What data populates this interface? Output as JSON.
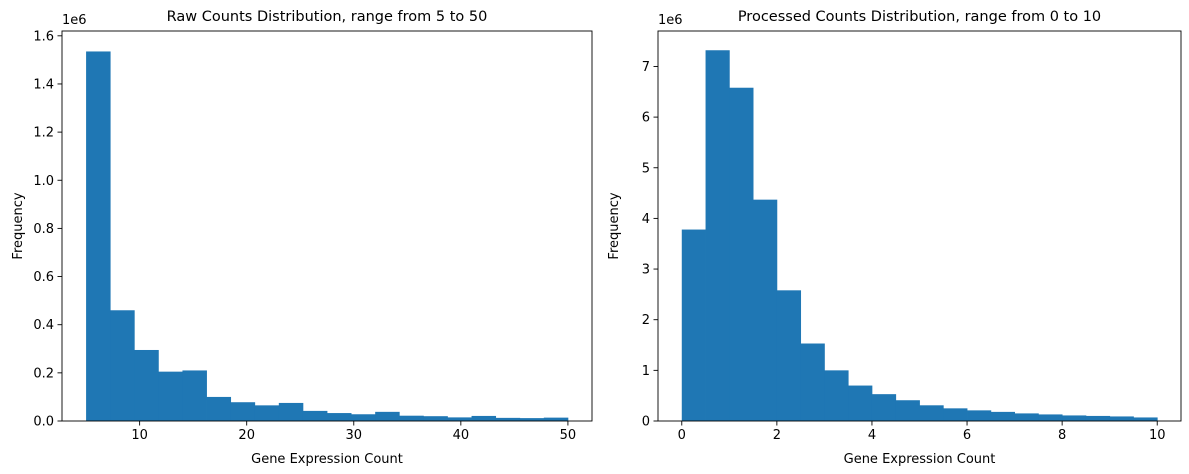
{
  "chart_data": [
    {
      "type": "bar",
      "title": "Raw Counts Distribution, range from 5 to 50",
      "xlabel": "Gene Expression Count",
      "ylabel": "Frequency",
      "y_multiplier": "1e6",
      "bar_color": "#1f77b4",
      "xlim": [
        2.75,
        52.25
      ],
      "ylim": [
        0,
        1.62
      ],
      "xticks": [
        10,
        20,
        30,
        40,
        50
      ],
      "xtick_labels": [
        "10",
        "20",
        "30",
        "40",
        "50"
      ],
      "yticks": [
        0.0,
        0.2,
        0.4,
        0.6,
        0.8,
        1.0,
        1.2,
        1.4,
        1.6
      ],
      "ytick_labels": [
        "0.0",
        "0.2",
        "0.4",
        "0.6",
        "0.8",
        "1.0",
        "1.2",
        "1.4",
        "1.6"
      ],
      "bin_edges": [
        5,
        7.25,
        9.5,
        11.75,
        14,
        16.25,
        18.5,
        20.75,
        23,
        25.25,
        27.5,
        29.75,
        32,
        34.25,
        36.5,
        38.75,
        41,
        43.25,
        45.5,
        47.75,
        50
      ],
      "values": [
        1.535,
        0.46,
        0.295,
        0.205,
        0.21,
        0.1,
        0.078,
        0.065,
        0.075,
        0.042,
        0.033,
        0.028,
        0.038,
        0.022,
        0.02,
        0.015,
        0.021,
        0.013,
        0.012,
        0.014
      ]
    },
    {
      "type": "bar",
      "title": "Processed Counts Distribution, range from 0 to 10",
      "xlabel": "Gene Expression Count",
      "ylabel": "Frequency",
      "y_multiplier": "1e6",
      "bar_color": "#1f77b4",
      "xlim": [
        -0.5,
        10.5
      ],
      "ylim": [
        0,
        7.7
      ],
      "xticks": [
        0,
        2,
        4,
        6,
        8,
        10
      ],
      "xtick_labels": [
        "0",
        "2",
        "4",
        "6",
        "8",
        "10"
      ],
      "yticks": [
        0,
        1,
        2,
        3,
        4,
        5,
        6,
        7
      ],
      "ytick_labels": [
        "0",
        "1",
        "2",
        "3",
        "4",
        "5",
        "6",
        "7"
      ],
      "bin_edges": [
        0,
        0.5,
        1,
        1.5,
        2,
        2.5,
        3,
        3.5,
        4,
        4.5,
        5,
        5.5,
        6,
        6.5,
        7,
        7.5,
        8,
        8.5,
        9,
        9.5,
        10
      ],
      "values": [
        3.78,
        7.32,
        6.58,
        4.37,
        2.58,
        1.53,
        1.0,
        0.7,
        0.53,
        0.41,
        0.31,
        0.25,
        0.21,
        0.18,
        0.15,
        0.13,
        0.11,
        0.1,
        0.09,
        0.07
      ]
    }
  ]
}
